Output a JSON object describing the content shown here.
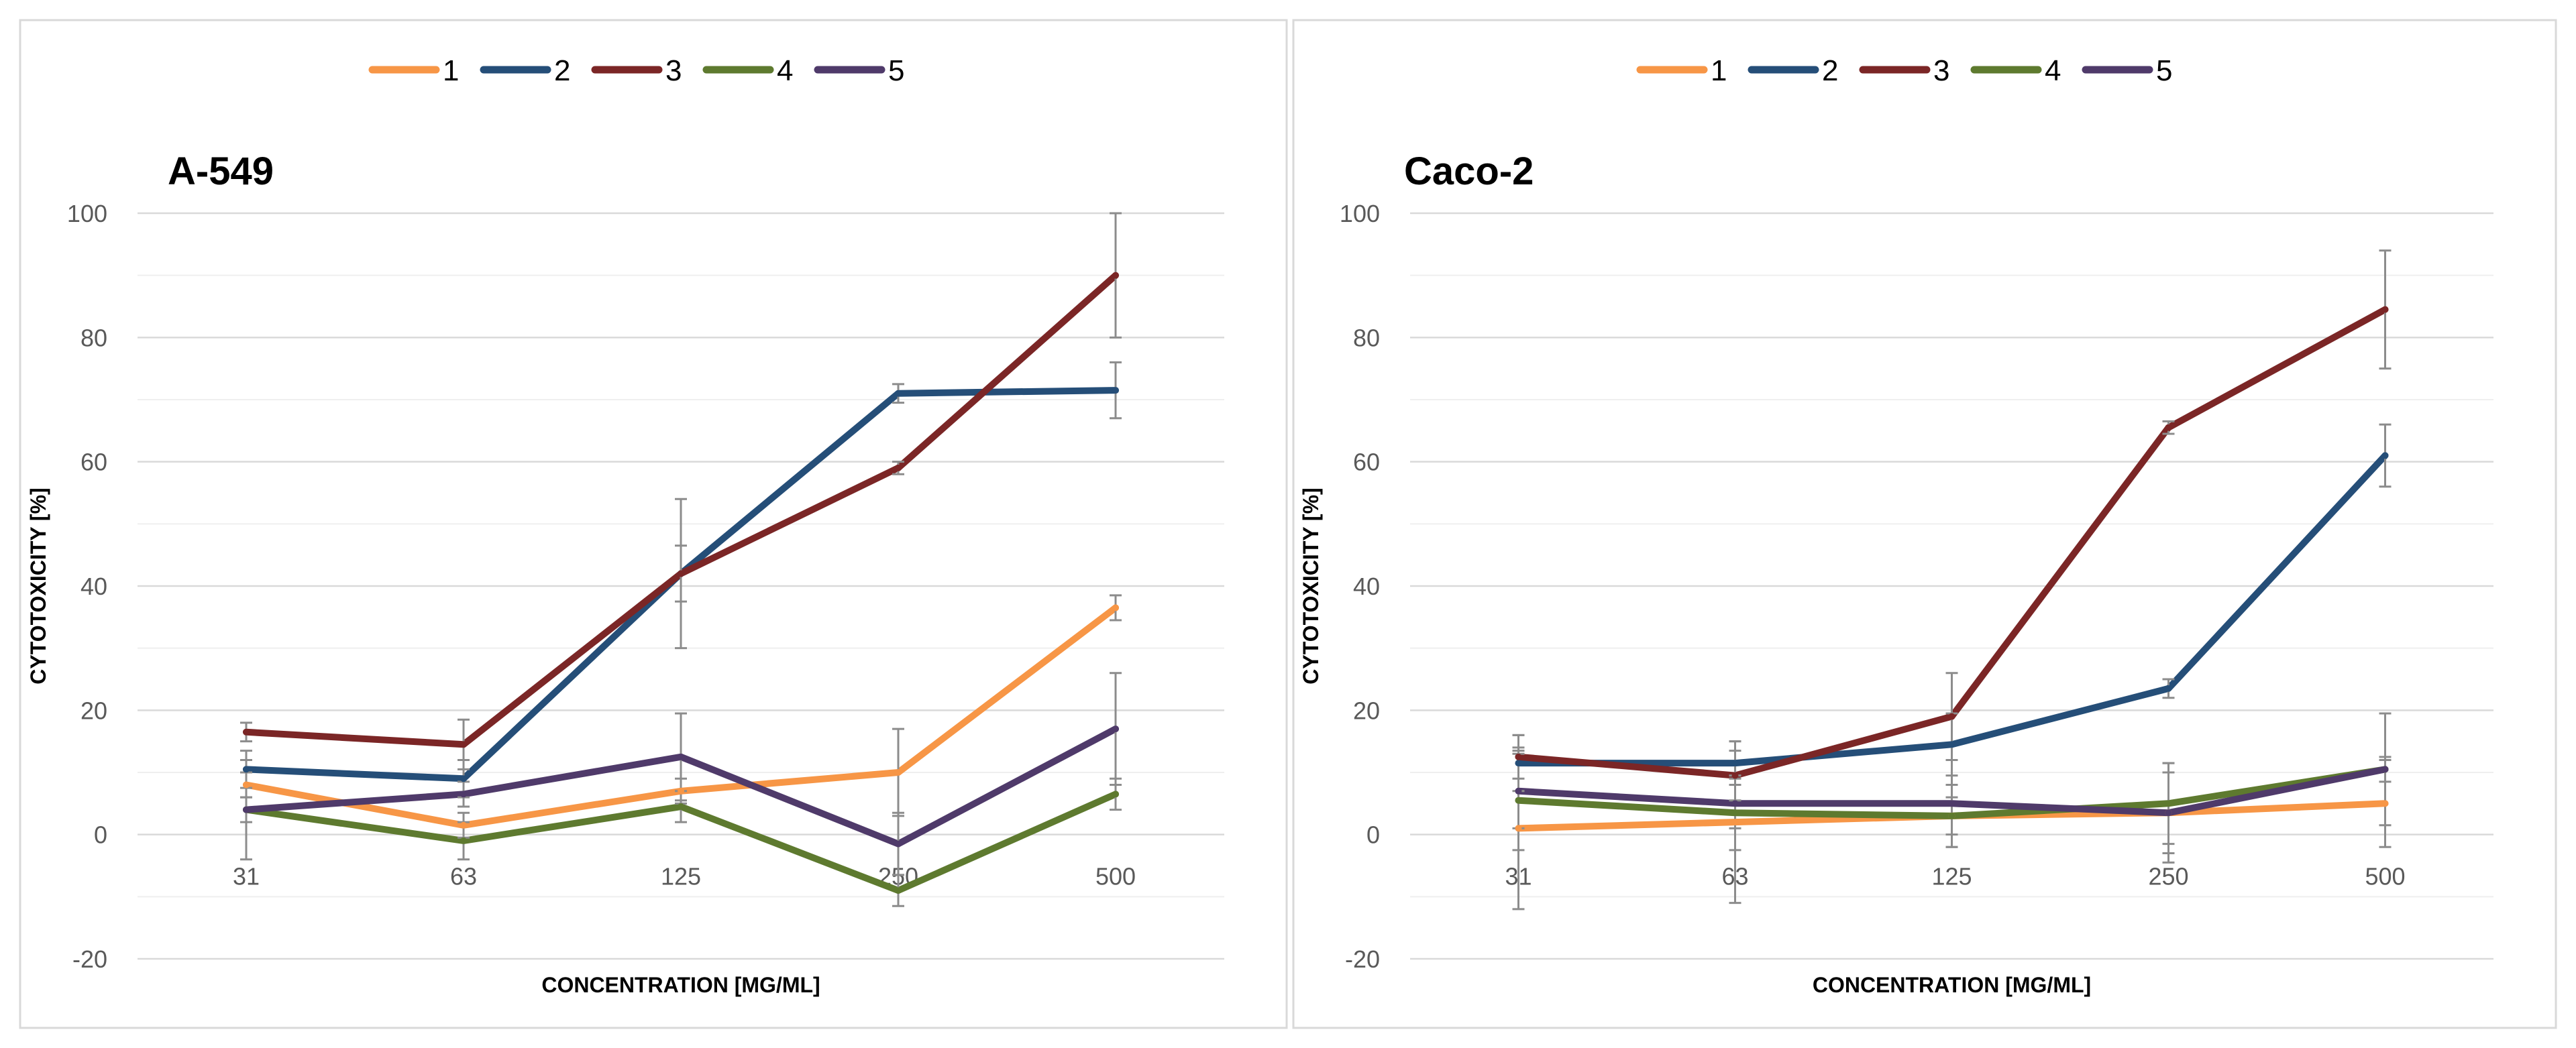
{
  "chart_data": [
    {
      "type": "line",
      "title": "A-549",
      "xlabel": "CONCENTRATION [MG/ML]",
      "ylabel": "CYTOTOXICITY [%]",
      "categories": [
        "31",
        "63",
        "125",
        "250",
        "500"
      ],
      "ylim": [
        -20,
        100
      ],
      "yticks": [
        -20,
        0,
        20,
        40,
        60,
        80,
        100
      ],
      "grid": true,
      "legend": "top-center",
      "series": [
        {
          "name": "1",
          "color": "#F79646",
          "values": [
            8,
            1.5,
            7,
            10,
            36.5
          ],
          "errors": [
            2,
            2,
            2,
            7,
            2
          ]
        },
        {
          "name": "2",
          "color": "#254E78",
          "values": [
            10.5,
            9,
            42,
            71,
            71.5
          ],
          "errors": [
            3,
            3,
            4.5,
            1.5,
            4.5
          ]
        },
        {
          "name": "3",
          "color": "#7B2626",
          "values": [
            16.5,
            14.5,
            42,
            59,
            90
          ],
          "errors": [
            1.5,
            4,
            12,
            1,
            10
          ]
        },
        {
          "name": "4",
          "color": "#5E7A2F",
          "values": [
            4,
            -1,
            4.5,
            -9,
            6.5
          ],
          "errors": [
            8,
            3,
            2.5,
            2.5,
            2.5
          ]
        },
        {
          "name": "5",
          "color": "#4F3A6A",
          "values": [
            4,
            6.5,
            12.5,
            -1.5,
            17
          ],
          "errors": [
            2,
            2,
            7,
            5,
            9
          ]
        }
      ]
    },
    {
      "type": "line",
      "title": "Caco-2",
      "xlabel": "CONCENTRATION [MG/ML]",
      "ylabel": "CYTOTOXICITY [%]",
      "categories": [
        "31",
        "63",
        "125",
        "250",
        "500"
      ],
      "ylim": [
        -20,
        100
      ],
      "yticks": [
        -20,
        0,
        20,
        40,
        60,
        80,
        100
      ],
      "grid": true,
      "legend": "top-center",
      "series": [
        {
          "name": "1",
          "color": "#F79646",
          "values": [
            1,
            2,
            3,
            3.5,
            5
          ],
          "errors": [
            13,
            13,
            5,
            8,
            7
          ]
        },
        {
          "name": "2",
          "color": "#254E78",
          "values": [
            11.5,
            11.5,
            14.5,
            23.5,
            61
          ],
          "errors": [
            4.5,
            3.5,
            5,
            1.5,
            5
          ]
        },
        {
          "name": "3",
          "color": "#7B2626",
          "values": [
            12.5,
            9.5,
            19,
            65.5,
            84.5
          ],
          "errors": [
            3.5,
            4,
            7,
            1,
            9.5
          ]
        },
        {
          "name": "4",
          "color": "#5E7A2F",
          "values": [
            5.5,
            3.5,
            3,
            5,
            10.5
          ],
          "errors": [
            8,
            6,
            3,
            6.5,
            2
          ]
        },
        {
          "name": "5",
          "color": "#4F3A6A",
          "values": [
            7,
            5,
            5,
            3.5,
            10.5
          ],
          "errors": [
            6,
            4,
            7,
            6.5,
            9
          ]
        }
      ]
    }
  ],
  "colors": {
    "panel_border": "#D9D9D9",
    "gridline": "#D9D9D9",
    "minor_gridline": "#EFEFEF",
    "tick_text": "#595959",
    "error_bar": "#8C8C8C"
  }
}
